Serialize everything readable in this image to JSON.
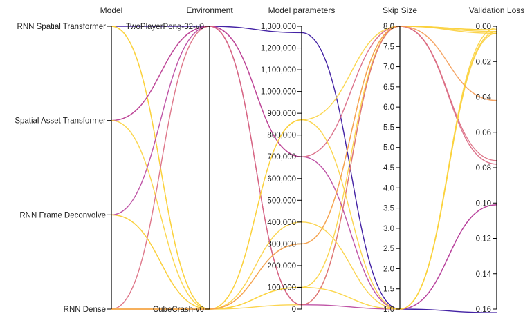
{
  "chart_data": {
    "type": "parallel-coordinates",
    "axes": [
      {
        "key": "model",
        "label": "Model",
        "kind": "categorical",
        "categories": [
          "RNN Spatial Transformer",
          "Spatial Asset Transformer",
          "RNN Frame Deconvolve",
          "RNN Dense"
        ]
      },
      {
        "key": "env",
        "label": "Environment",
        "kind": "categorical",
        "categories": [
          "TwoPlayerPong-32-v0",
          "CubeCrash-v0"
        ]
      },
      {
        "key": "params",
        "label": "Model parameters",
        "kind": "linear",
        "range": [
          0,
          1300000
        ],
        "ticks": [
          0,
          100000,
          200000,
          300000,
          400000,
          500000,
          600000,
          700000,
          800000,
          900000,
          1000000,
          1100000,
          1200000,
          1300000
        ],
        "tick_labels": [
          "0",
          "100,000",
          "200,000",
          "300,000",
          "400,000",
          "500,000",
          "600,000",
          "700,000",
          "800,000",
          "900,000",
          "1,000,000",
          "1,100,000",
          "1,200,000",
          "1,300,000"
        ]
      },
      {
        "key": "skip",
        "label": "Skip Size",
        "kind": "linear",
        "range": [
          1.0,
          8.0
        ],
        "ticks": [
          1.0,
          1.5,
          2.0,
          2.5,
          3.0,
          3.5,
          4.0,
          4.5,
          5.0,
          5.5,
          6.0,
          6.5,
          7.0,
          7.5,
          8.0
        ],
        "tick_labels": [
          "1.0",
          "1.5",
          "2.0",
          "2.5",
          "3.0",
          "3.5",
          "4.0",
          "4.5",
          "5.0",
          "5.5",
          "6.0",
          "6.5",
          "7.0",
          "7.5",
          "8.0"
        ]
      },
      {
        "key": "loss",
        "label": "Validation Loss",
        "kind": "linear",
        "range": [
          0.0,
          0.16
        ],
        "inverted": true,
        "ticks": [
          0.0,
          0.02,
          0.04,
          0.06,
          0.08,
          0.1,
          0.12,
          0.14,
          0.16
        ],
        "tick_labels": [
          "0.00",
          "0.02",
          "0.04",
          "0.06",
          "0.08",
          "0.10",
          "0.12",
          "0.14",
          "0.16"
        ]
      }
    ],
    "records": [
      {
        "model": "RNN Spatial Transformer",
        "env": "TwoPlayerPong-32-v0",
        "params": 1270000,
        "skip": 1.0,
        "loss": 0.162
      },
      {
        "model": "RNN Spatial Transformer",
        "env": "CubeCrash-v0",
        "params": 20000,
        "skip": 8.0,
        "loss": 0.004
      },
      {
        "model": "RNN Spatial Transformer",
        "env": "CubeCrash-v0",
        "params": 100000,
        "skip": 8.0,
        "loss": 0.002
      },
      {
        "model": "Spatial Asset Transformer",
        "env": "TwoPlayerPong-32-v0",
        "params": 700000,
        "skip": 8.0,
        "loss": 0.078
      },
      {
        "model": "Spatial Asset Transformer",
        "env": "TwoPlayerPong-32-v0",
        "params": 700000,
        "skip": 1.0,
        "loss": 0.101
      },
      {
        "model": "Spatial Asset Transformer",
        "env": "CubeCrash-v0",
        "params": 870000,
        "skip": 8.0,
        "loss": 0.002
      },
      {
        "model": "RNN Frame Deconvolve",
        "env": "TwoPlayerPong-32-v0",
        "params": 20000,
        "skip": 1.0,
        "loss": 0.101
      },
      {
        "model": "RNN Frame Deconvolve",
        "env": "CubeCrash-v0",
        "params": 300000,
        "skip": 8.0,
        "loss": 0.003
      },
      {
        "model": "RNN Frame Deconvolve",
        "env": "CubeCrash-v0",
        "params": 400000,
        "skip": 1.0,
        "loss": 0.004
      },
      {
        "model": "RNN Dense",
        "env": "TwoPlayerPong-32-v0",
        "params": 20000,
        "skip": 8.0,
        "loss": 0.076
      },
      {
        "model": "RNN Dense",
        "env": "CubeCrash-v0",
        "params": 870000,
        "skip": 1.0,
        "loss": 0.003
      },
      {
        "model": "RNN Dense",
        "env": "CubeCrash-v0",
        "params": 100000,
        "skip": 1.0,
        "loss": 0.001
      },
      {
        "model": "RNN Dense",
        "env": "CubeCrash-v0",
        "params": 300000,
        "skip": 8.0,
        "loss": 0.042
      }
    ],
    "color_by": "loss",
    "color_scale": [
      "#2f0a9a",
      "#8c1fa6",
      "#c0479a",
      "#ea7b6b",
      "#f8a94a",
      "#fbd43a"
    ],
    "grid": false,
    "legend": "none"
  }
}
